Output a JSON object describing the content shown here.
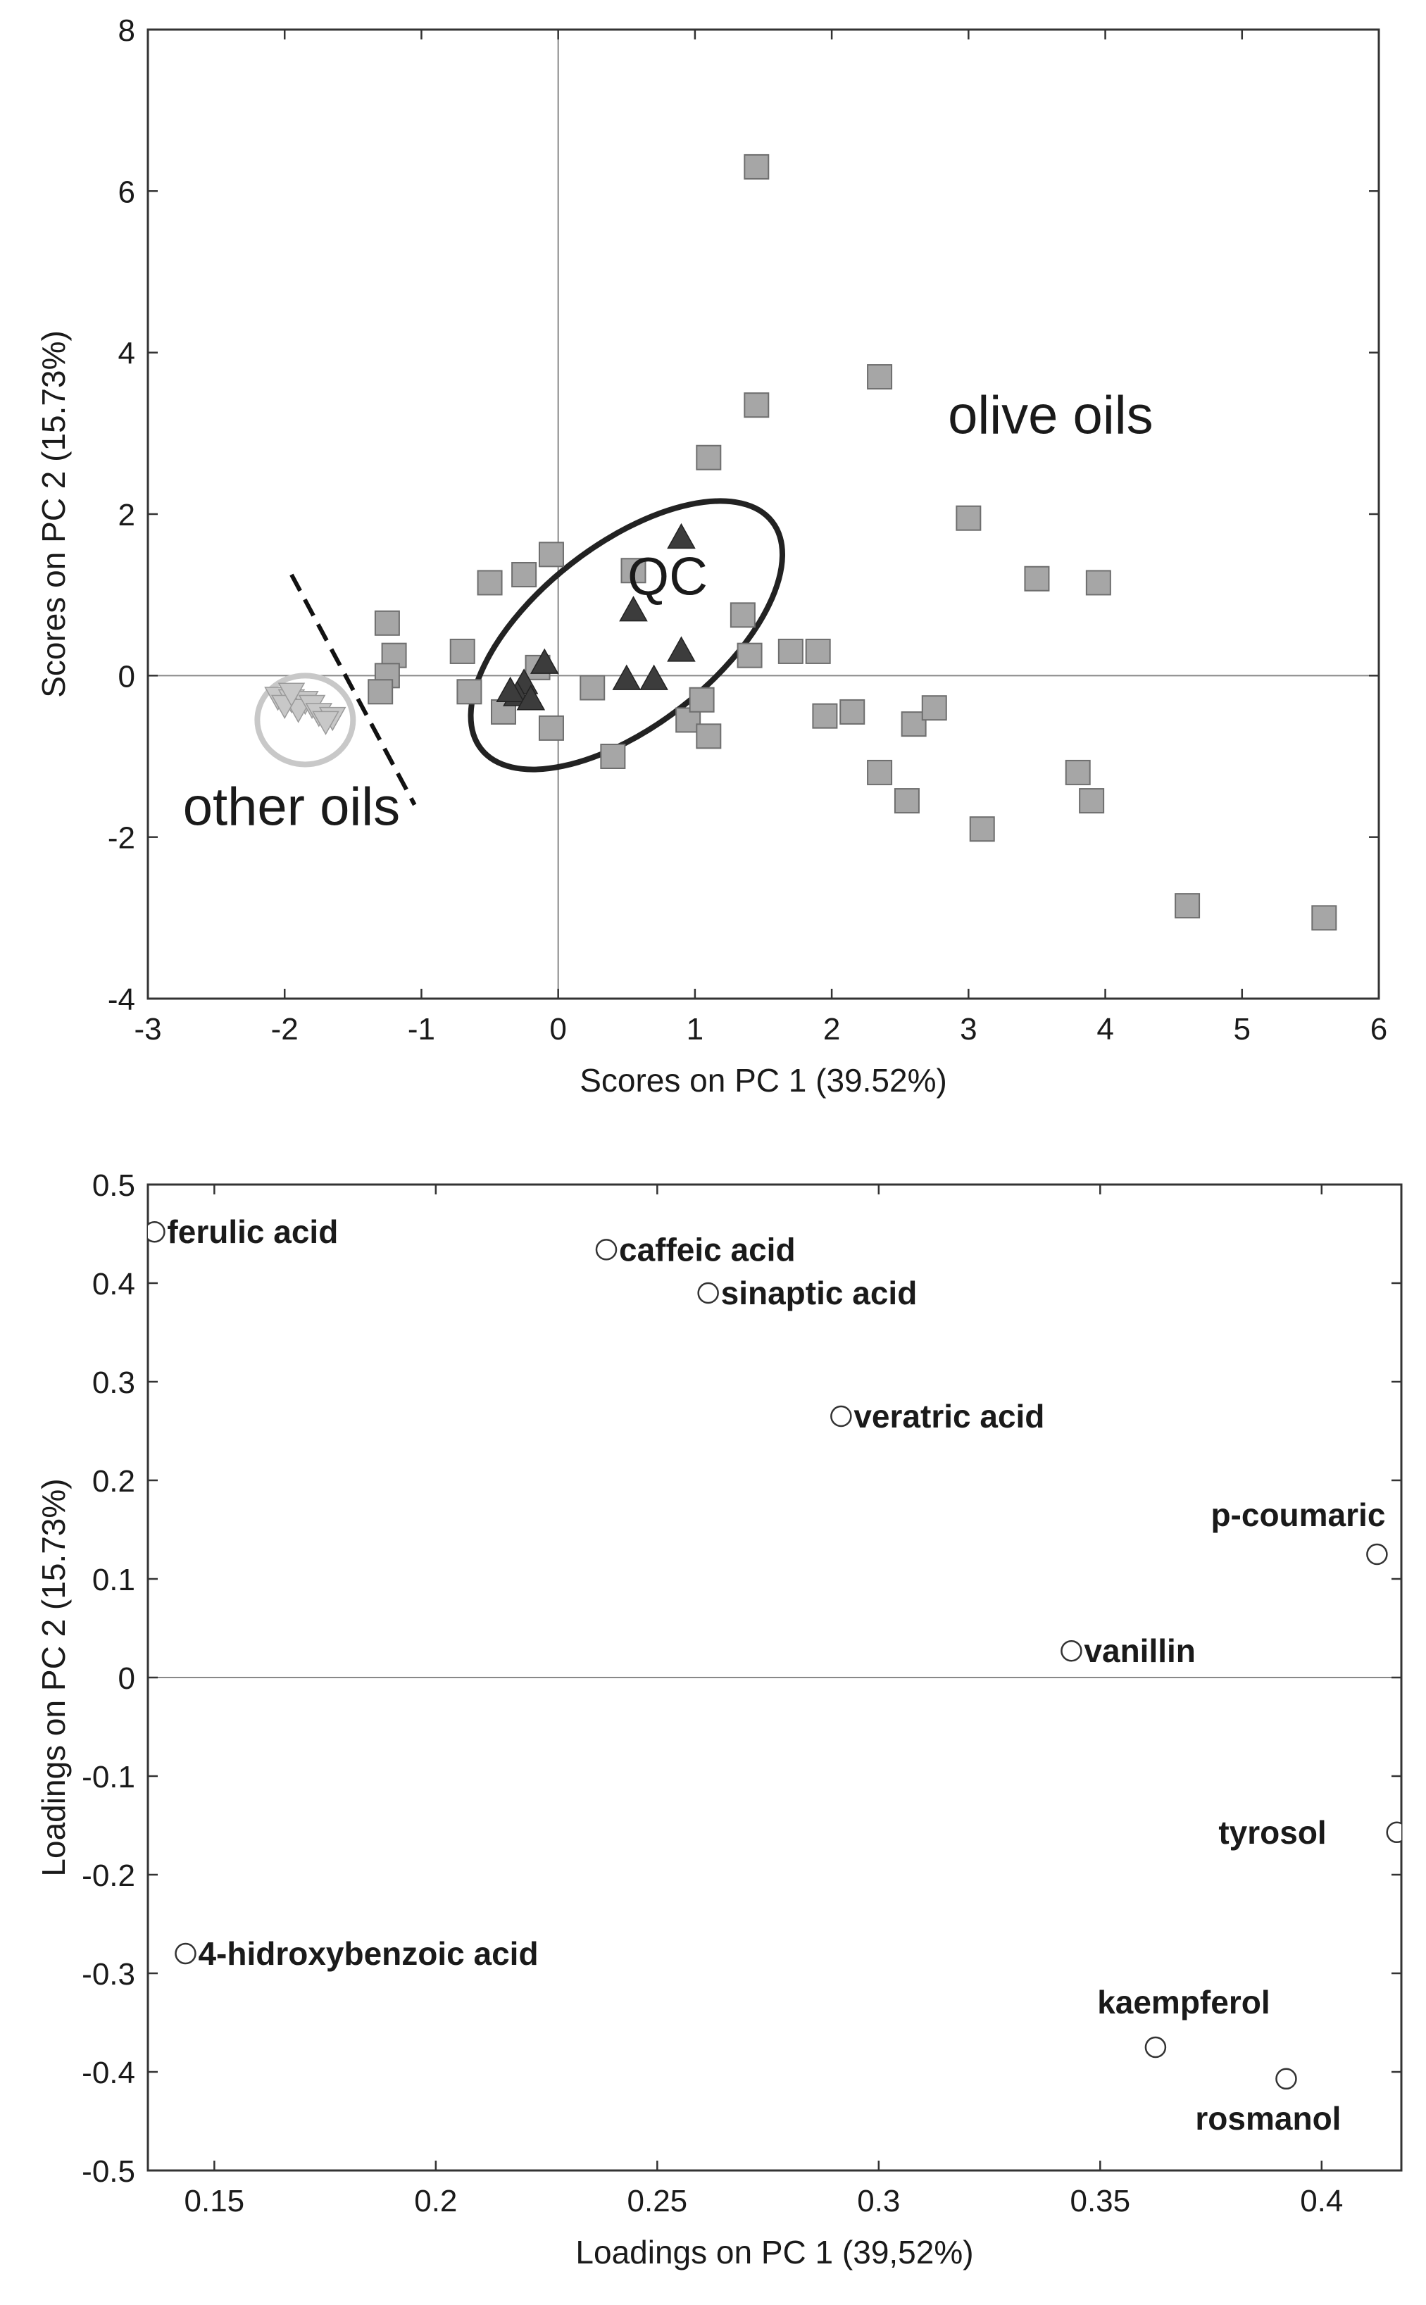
{
  "chart_data": [
    {
      "type": "scatter",
      "title": "",
      "xlabel": "Scores on PC 1 (39.52%)",
      "ylabel": "Scores on PC 2 (15.73%)",
      "xlim": [
        -3,
        6
      ],
      "ylim": [
        -4,
        8
      ],
      "xticks": [
        -3,
        -2,
        -1,
        0,
        1,
        2,
        3,
        4,
        5,
        6
      ],
      "yticks": [
        -4,
        -2,
        0,
        2,
        4,
        6,
        8
      ],
      "grid": false,
      "zero_lines": true,
      "series": [
        {
          "name": "olive oils",
          "marker": "square",
          "color": "#a6a6a6",
          "points": [
            [
              1.45,
              6.3
            ],
            [
              2.35,
              3.7
            ],
            [
              1.45,
              3.35
            ],
            [
              1.1,
              2.7
            ],
            [
              3.0,
              1.95
            ],
            [
              3.5,
              1.2
            ],
            [
              3.95,
              1.15
            ],
            [
              0.55,
              1.3
            ],
            [
              -0.05,
              1.5
            ],
            [
              -0.25,
              1.25
            ],
            [
              -0.5,
              1.15
            ],
            [
              -1.25,
              0.65
            ],
            [
              -1.2,
              0.25
            ],
            [
              -1.25,
              0.0
            ],
            [
              -1.3,
              -0.2
            ],
            [
              -0.7,
              0.3
            ],
            [
              -0.65,
              -0.2
            ],
            [
              -0.4,
              -0.45
            ],
            [
              -0.15,
              0.1
            ],
            [
              -0.05,
              -0.65
            ],
            [
              0.25,
              -0.15
            ],
            [
              0.4,
              -1.0
            ],
            [
              0.95,
              -0.55
            ],
            [
              1.05,
              -0.3
            ],
            [
              1.1,
              -0.75
            ],
            [
              1.35,
              0.75
            ],
            [
              1.4,
              0.25
            ],
            [
              1.7,
              0.3
            ],
            [
              1.9,
              0.3
            ],
            [
              1.95,
              -0.5
            ],
            [
              2.15,
              -0.45
            ],
            [
              2.35,
              -1.2
            ],
            [
              2.55,
              -1.55
            ],
            [
              2.6,
              -0.6
            ],
            [
              2.75,
              -0.4
            ],
            [
              3.1,
              -1.9
            ],
            [
              3.8,
              -1.2
            ],
            [
              3.9,
              -1.55
            ],
            [
              4.6,
              -2.85
            ],
            [
              5.6,
              -3.0
            ]
          ]
        },
        {
          "name": "QC",
          "marker": "triangle",
          "color": "#3c3c3c",
          "points": [
            [
              0.9,
              1.7
            ],
            [
              0.55,
              0.8
            ],
            [
              0.9,
              0.3
            ],
            [
              0.5,
              -0.05
            ],
            [
              0.7,
              -0.05
            ],
            [
              -0.1,
              0.15
            ],
            [
              -0.25,
              -0.1
            ],
            [
              -0.3,
              -0.25
            ],
            [
              -0.35,
              -0.2
            ],
            [
              -0.2,
              -0.3
            ]
          ]
        },
        {
          "name": "other oils",
          "marker": "triangle-down",
          "color": "#c8c8c8",
          "points": [
            [
              -2.05,
              -0.25
            ],
            [
              -1.95,
              -0.28
            ],
            [
              -1.85,
              -0.3
            ],
            [
              -1.9,
              -0.4
            ],
            [
              -1.8,
              -0.35
            ],
            [
              -1.75,
              -0.45
            ],
            [
              -1.65,
              -0.5
            ],
            [
              -1.7,
              -0.55
            ],
            [
              -2.0,
              -0.35
            ],
            [
              -1.95,
              -0.2
            ]
          ]
        }
      ],
      "annotations": [
        {
          "text": "olive oils",
          "x": 3.6,
          "y": 3.0
        },
        {
          "text": "QC",
          "x": 0.8,
          "y": 1.0
        },
        {
          "text": "other oils",
          "x": -1.95,
          "y": -1.85
        }
      ],
      "ellipses": [
        {
          "group": "QC",
          "cx": 0.5,
          "cy": 0.5,
          "rx": 1.35,
          "ry": 1.12,
          "angle": 38,
          "color": "#222222"
        },
        {
          "group": "other oils",
          "cx": -1.85,
          "cy": -0.55,
          "rx": 0.35,
          "ry": 0.55,
          "angle": 0,
          "color": "#c8c8c8"
        }
      ],
      "dashed_line": {
        "x1": -1.95,
        "y1": 1.25,
        "x2": -1.05,
        "y2": -1.6
      }
    },
    {
      "type": "scatter",
      "title": "",
      "xlabel": "Loadings on PC 1 (39,52%)",
      "ylabel": "Loadings on PC 2 (15.73%)",
      "xlim": [
        0.135,
        0.418
      ],
      "ylim": [
        -0.5,
        0.5
      ],
      "xticks": [
        0.15,
        0.2,
        0.25,
        0.3,
        0.35,
        0.4
      ],
      "yticks": [
        -0.5,
        -0.4,
        -0.3,
        -0.2,
        -0.1,
        0,
        0.1,
        0.2,
        0.3,
        0.4,
        0.5
      ],
      "grid": false,
      "zero_lines": true,
      "points": [
        {
          "name": "ferulic acid",
          "x": 0.1365,
          "y": 0.452,
          "label_side": "right"
        },
        {
          "name": "caffeic acid",
          "x": 0.2385,
          "y": 0.434,
          "label_side": "right"
        },
        {
          "name": "sinaptic acid",
          "x": 0.2615,
          "y": 0.39,
          "label_side": "right"
        },
        {
          "name": "veratric acid",
          "x": 0.2915,
          "y": 0.265,
          "label_side": "right"
        },
        {
          "name": "p-coumaric",
          "x": 0.4125,
          "y": 0.125,
          "label_side": "above-left"
        },
        {
          "name": "vanillin",
          "x": 0.3435,
          "y": 0.027,
          "label_side": "right"
        },
        {
          "name": "tyrosol",
          "x": 0.417,
          "y": -0.157,
          "label_side": "left"
        },
        {
          "name": "4-hidroxybenzoic acid",
          "x": 0.1435,
          "y": -0.28,
          "label_side": "right"
        },
        {
          "name": "kaempferol",
          "x": 0.3625,
          "y": -0.375,
          "label_side": "above"
        },
        {
          "name": "rosmanol",
          "x": 0.392,
          "y": -0.407,
          "label_side": "below-left"
        }
      ]
    }
  ]
}
